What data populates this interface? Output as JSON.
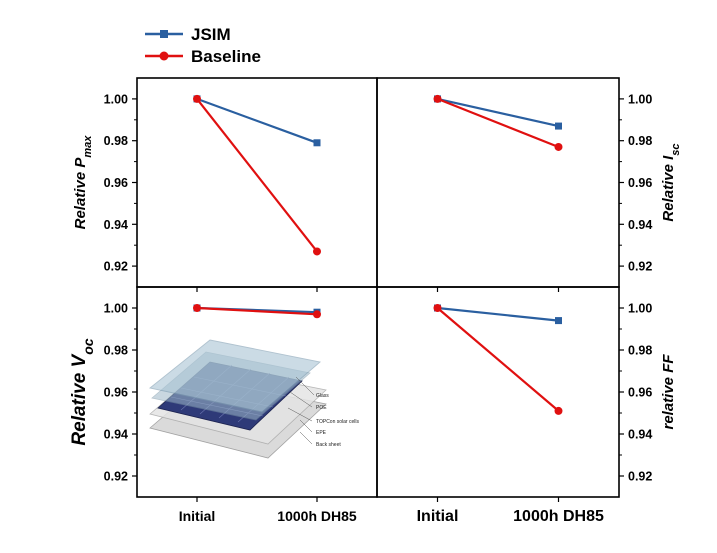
{
  "legend": [
    {
      "name": "JSIM",
      "color": "#2a5fa0",
      "marker": "square"
    },
    {
      "name": "Baseline",
      "color": "#e01010",
      "marker": "circle"
    }
  ],
  "inset": {
    "description_labels": [
      "Glass",
      "POE",
      "TOPCon solar cells",
      "EPE",
      "Back sheet"
    ]
  },
  "chart_data": [
    {
      "type": "line",
      "panel": "top-left",
      "x": [
        "Initial",
        "1000h DH85"
      ],
      "ylabel": "Relative P",
      "ylabel_sub": "max",
      "ylim": [
        0.91,
        1.01
      ],
      "yticks": [
        "0.92",
        "0.94",
        "0.96",
        "0.98",
        "1.00"
      ],
      "series": [
        {
          "name": "JSIM",
          "values": [
            1.0,
            0.979
          ]
        },
        {
          "name": "Baseline",
          "values": [
            1.0,
            0.927
          ]
        }
      ]
    },
    {
      "type": "line",
      "panel": "top-right",
      "x": [
        "Initial",
        "1000h DH85"
      ],
      "ylabel": "Relative I",
      "ylabel_sub": "sc",
      "ylim": [
        0.91,
        1.01
      ],
      "yticks": [
        "0.92",
        "0.94",
        "0.96",
        "0.98",
        "1.00"
      ],
      "series": [
        {
          "name": "JSIM",
          "values": [
            1.0,
            0.987
          ]
        },
        {
          "name": "Baseline",
          "values": [
            1.0,
            0.977
          ]
        }
      ]
    },
    {
      "type": "line",
      "panel": "bottom-left",
      "x": [
        "Initial",
        "1000h DH85"
      ],
      "xticks": [
        "Initial",
        "1000h DH85"
      ],
      "ylabel": "Relative V",
      "ylabel_sub": "oc",
      "ylim": [
        0.91,
        1.01
      ],
      "yticks": [
        "0.92",
        "0.94",
        "0.96",
        "0.98",
        "1.00"
      ],
      "series": [
        {
          "name": "JSIM",
          "values": [
            1.0,
            0.998
          ]
        },
        {
          "name": "Baseline",
          "values": [
            1.0,
            0.997
          ]
        }
      ]
    },
    {
      "type": "line",
      "panel": "bottom-right",
      "x": [
        "Initial",
        "1000h DH85"
      ],
      "xticks": [
        "Initial",
        "1000h DH85"
      ],
      "ylabel": "relative FF",
      "ylabel_sub": "",
      "ylim": [
        0.91,
        1.01
      ],
      "yticks": [
        "0.92",
        "0.94",
        "0.96",
        "0.98",
        "1.00"
      ],
      "series": [
        {
          "name": "JSIM",
          "values": [
            1.0,
            0.994
          ]
        },
        {
          "name": "Baseline",
          "values": [
            1.0,
            0.951
          ]
        }
      ]
    }
  ]
}
